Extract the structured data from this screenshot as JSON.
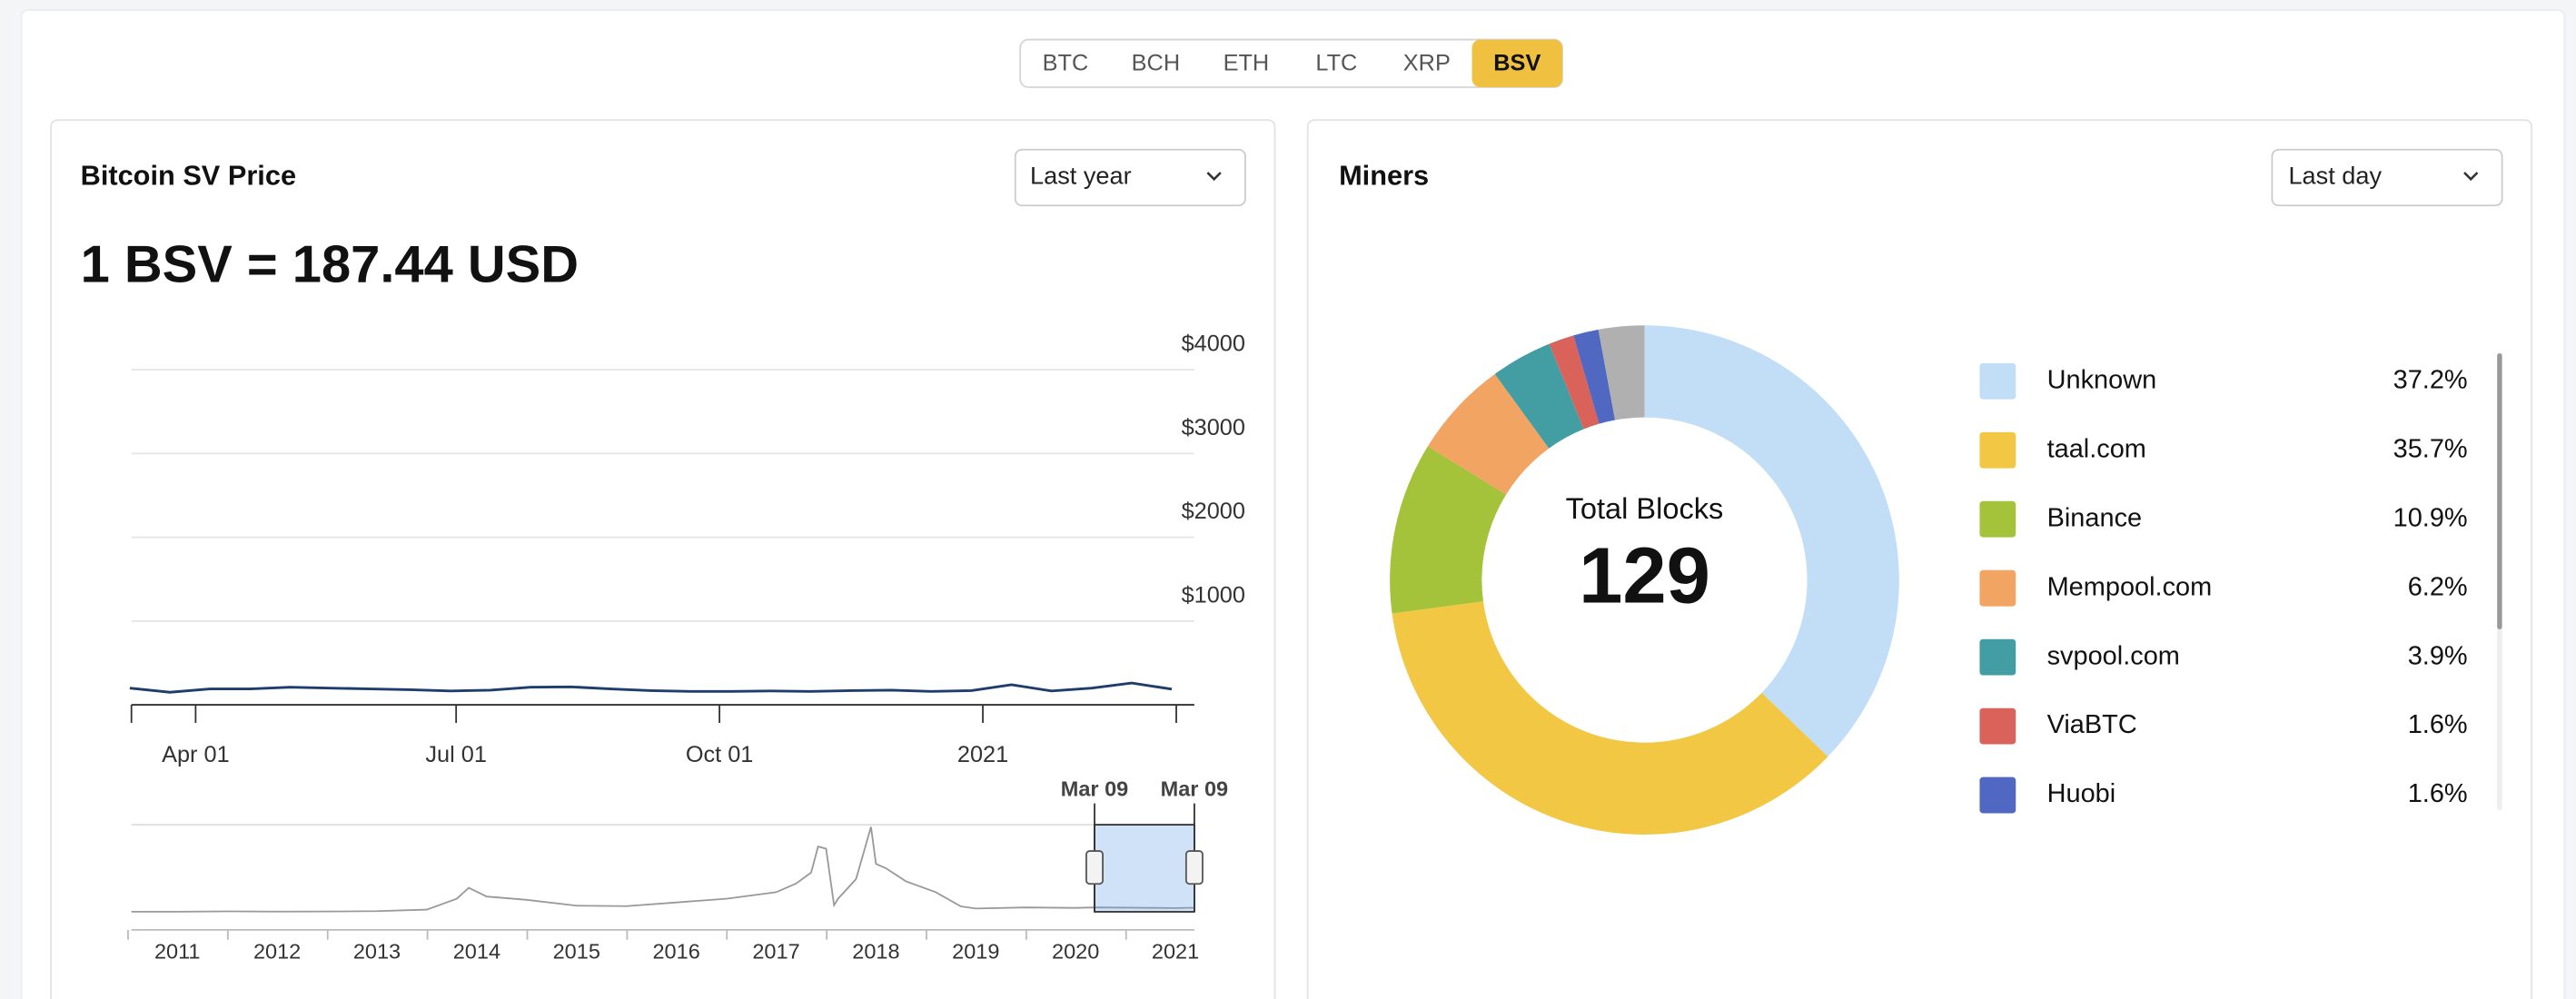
{
  "tabs": [
    "BTC",
    "BCH",
    "ETH",
    "LTC",
    "XRP",
    "BSV"
  ],
  "active_tab": "BSV",
  "price_card": {
    "title": "Bitcoin SV Price",
    "period": "Last year",
    "price_text": "1 BSV = 187.44 USD"
  },
  "miners_card": {
    "title": "Miners",
    "period": "Last day"
  },
  "chart_data": [
    {
      "type": "line",
      "x": [
        "2020-03-09",
        "2020-03-23",
        "2020-04-06",
        "2020-04-20",
        "2020-05-04",
        "2020-05-18",
        "2020-06-01",
        "2020-06-15",
        "2020-06-29",
        "2020-07-13",
        "2020-07-27",
        "2020-08-10",
        "2020-08-24",
        "2020-09-07",
        "2020-09-21",
        "2020-10-05",
        "2020-10-19",
        "2020-11-02",
        "2020-11-16",
        "2020-11-30",
        "2020-12-14",
        "2020-12-28",
        "2021-01-11",
        "2021-01-25",
        "2021-02-08",
        "2021-02-22",
        "2021-03-08"
      ],
      "values": [
        200,
        150,
        190,
        190,
        210,
        200,
        190,
        180,
        165,
        175,
        210,
        215,
        190,
        170,
        160,
        160,
        165,
        160,
        170,
        175,
        160,
        170,
        240,
        165,
        200,
        260,
        187.44
      ],
      "color": "#1f3d6b",
      "xlim": [
        "2020-03-09",
        "2021-03-09"
      ],
      "xticks": [
        {
          "value": "2020-04-01",
          "label": "Apr 01"
        },
        {
          "value": "2020-07-01",
          "label": "Jul 01"
        },
        {
          "value": "2020-10-01",
          "label": "Oct 01"
        },
        {
          "value": "2021-01-01",
          "label": "2021"
        }
      ],
      "ylim": [
        0,
        4000
      ],
      "yticks": [
        {
          "value": 1000,
          "label": "$1000"
        },
        {
          "value": 2000,
          "label": "$2000"
        },
        {
          "value": 3000,
          "label": "$3000"
        },
        {
          "value": 4000,
          "label": "$4000"
        }
      ],
      "grid": true
    },
    {
      "type": "navigator",
      "x": [
        2010.54,
        2011.0,
        2011.5,
        2012.0,
        2012.5,
        2013.0,
        2013.5,
        2013.8,
        2013.92,
        2014.1,
        2014.5,
        2015.0,
        2015.5,
        2016.0,
        2016.5,
        2017.0,
        2017.2,
        2017.35,
        2017.42,
        2017.5,
        2017.58,
        2017.62,
        2017.8,
        2017.95,
        2018.0,
        2018.1,
        2018.3,
        2018.6,
        2018.85,
        2019.0,
        2019.5,
        2020.0,
        2020.19,
        2020.5,
        2021.0,
        2021.19
      ],
      "values": [
        5,
        5,
        20,
        10,
        15,
        30,
        100,
        600,
        1100,
        700,
        550,
        280,
        260,
        430,
        600,
        900,
        1300,
        1800,
        3000,
        2900,
        300,
        600,
        1500,
        3900,
        2200,
        2000,
        1400,
        900,
        250,
        150,
        200,
        180,
        200,
        190,
        170,
        187
      ],
      "color": "#999999",
      "xlim": [
        2010.54,
        2021.19
      ],
      "xticks": [
        2011,
        2012,
        2013,
        2014,
        2015,
        2016,
        2017,
        2018,
        2019,
        2020,
        2021
      ],
      "ylim": [
        0,
        4000
      ],
      "selection": [
        2020.19,
        2021.19
      ],
      "selection_labels": [
        "Mar 09",
        "Mar 09"
      ]
    },
    {
      "type": "donut",
      "center_label": "Total Blocks",
      "total": 129,
      "categories": [
        "Unknown",
        "taal.com",
        "Binance",
        "Mempool.com",
        "svpool.com",
        "ViaBTC",
        "Huobi",
        null
      ],
      "values": [
        37.2,
        35.7,
        10.9,
        6.2,
        3.9,
        1.6,
        1.6,
        2.9
      ],
      "value_labels": [
        "37.2%",
        "35.7%",
        "10.9%",
        "6.2%",
        "3.9%",
        "1.6%",
        "1.6%",
        null
      ],
      "colors": [
        "#c2def7",
        "#f2c744",
        "#a4c23a",
        "#f2a463",
        "#439ea3",
        "#d9625a",
        "#5068c2",
        "#b0b0b0"
      ]
    }
  ]
}
